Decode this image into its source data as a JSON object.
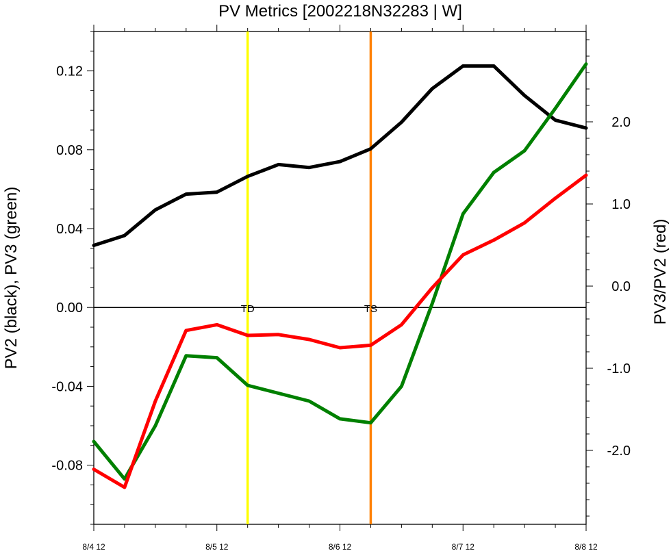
{
  "chart_data": {
    "type": "line",
    "title": "PV Metrics [2002218N32283 | W]",
    "ylabel_left": "PV2 (black), PV3 (green)",
    "ylabel_right": "PV3/PV2 (red)",
    "x_tick_labels": [
      "8/4 12",
      "8/5 12",
      "8/6 12",
      "8/7 12",
      "8/8 12"
    ],
    "left_axis": {
      "range": [
        -0.11,
        0.14
      ],
      "ticks": [
        "-0.08",
        "-0.04",
        "0.00",
        "0.04",
        "0.08",
        "0.12"
      ],
      "tick_values": [
        -0.08,
        -0.04,
        0.0,
        0.04,
        0.08,
        0.12
      ]
    },
    "right_axis": {
      "range": [
        -2.9,
        3.1
      ],
      "ticks": [
        "-2.0",
        "-1.0",
        "0.0",
        "1.0",
        "2.0"
      ],
      "tick_values": [
        -2.0,
        -1.0,
        0.0,
        1.0,
        2.0
      ]
    },
    "x_count": 17,
    "series": [
      {
        "axis": "left",
        "color": "#000000",
        "values": [
          0.0315,
          0.0365,
          0.0495,
          0.0575,
          0.0585,
          0.0665,
          0.0725,
          0.071,
          0.074,
          0.0805,
          0.094,
          0.111,
          0.1225,
          0.1225,
          0.1075,
          0.095,
          0.091
        ]
      },
      {
        "axis": "left",
        "color": "#008000",
        "values": [
          -0.068,
          -0.087,
          -0.06,
          -0.0245,
          -0.0255,
          -0.0395,
          -0.0435,
          -0.0475,
          -0.0565,
          -0.0585,
          -0.04,
          0.002,
          0.0475,
          0.0685,
          0.0795,
          0.101,
          0.1235
        ]
      },
      {
        "axis": "right",
        "color": "#ff0000",
        "values": [
          -2.23,
          -2.45,
          -1.4,
          -0.54,
          -0.47,
          -0.6,
          -0.59,
          -0.65,
          -0.75,
          -0.72,
          -0.47,
          -0.02,
          0.38,
          0.56,
          0.77,
          1.07,
          1.35
        ]
      }
    ],
    "zero_line_left": 0.0,
    "vertical_markers": [
      {
        "label": "TD",
        "x_index": 5,
        "color": "#ffff00"
      },
      {
        "label": "TS",
        "x_index": 9,
        "color": "#ff8000"
      }
    ]
  }
}
